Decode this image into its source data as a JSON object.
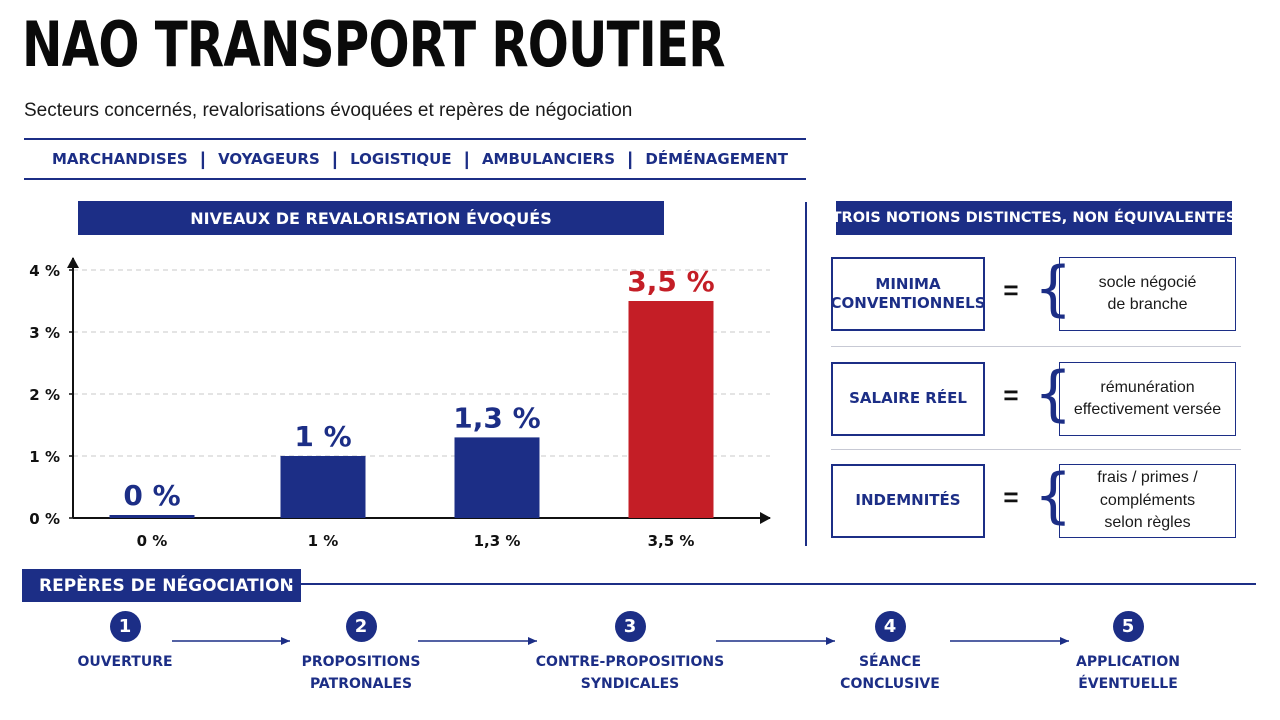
{
  "header": {
    "title": "NAO TRANSPORT ROUTIER",
    "subtitle": "Secteurs concernés, revalorisations évoquées et repères de négociation"
  },
  "sectors": [
    "MARCHANDISES",
    "VOYAGEURS",
    "LOGISTIQUE",
    "AMBULANCIERS",
    "DÉMÉNAGEMENT"
  ],
  "chart_section": {
    "title": "NIVEAUX DE REVALORISATION ÉVOQUÉS"
  },
  "chart_data": {
    "type": "bar",
    "title": "NIVEAUX DE REVALORISATION ÉVOQUÉS",
    "categories": [
      "0 %",
      "1 %",
      "1,3 %",
      "3,5 %"
    ],
    "values": [
      0,
      1,
      1.3,
      3.5
    ],
    "data_labels": [
      "0 %",
      "1 %",
      "1,3 %",
      "3,5 %"
    ],
    "yticks": [
      0,
      1,
      2,
      3,
      4
    ],
    "ytick_labels": [
      "0 %",
      "1 %",
      "2 %",
      "3 %",
      "4 %"
    ],
    "ylim": [
      0,
      4
    ],
    "xlabel": "",
    "ylabel": "",
    "grid": "horizontal dashed",
    "legend": "none",
    "colors": [
      "#1c2e86",
      "#1c2e86",
      "#1c2e86",
      "#c41e26"
    ]
  },
  "notions": {
    "title": "TROIS NOTIONS DISTINCTES, NON ÉQUIVALENTES",
    "eq_symbol": "=",
    "items": [
      {
        "term": "MINIMA CONVENTIONNELS",
        "desc": "socle négocié\nde branche"
      },
      {
        "term": "SALAIRE RÉEL",
        "desc": "rémunération\neffectivement versée"
      },
      {
        "term": "INDEMNITÉS",
        "desc": "frais / primes /\ncompléments\nselon règles"
      }
    ]
  },
  "steps": {
    "title": "REPÈRES DE NÉGOCIATION",
    "items": [
      {
        "num": "1",
        "label": "OUVERTURE"
      },
      {
        "num": "2",
        "label": "PROPOSITIONS\nPATRONALES"
      },
      {
        "num": "3",
        "label": "CONTRE-PROPOSITIONS\nSYNDICALES"
      },
      {
        "num": "4",
        "label": "SÉANCE\nCONCLUSIVE"
      },
      {
        "num": "5",
        "label": "APPLICATION\nÉVENTUELLE"
      }
    ]
  },
  "colors": {
    "navy": "#1c2e86",
    "red": "#c41e26",
    "grid": "#c9c9c9"
  }
}
